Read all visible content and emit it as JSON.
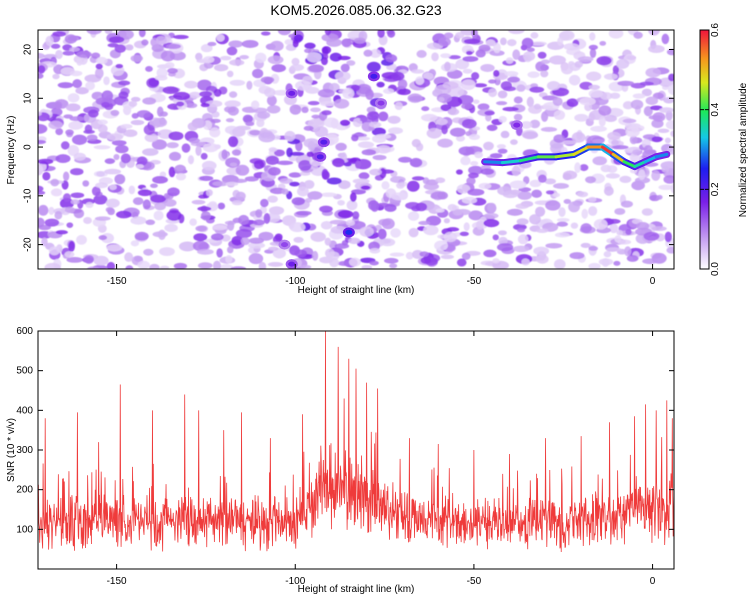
{
  "figure": {
    "title": "KOM5.2026.085.06.32.G23"
  },
  "chart_data": [
    {
      "type": "heatmap",
      "title": "",
      "xlabel": "Height of straight line (km)",
      "ylabel": "Frequency (Hz)",
      "xlim": [
        -172,
        6
      ],
      "ylim": [
        -25,
        24
      ],
      "xticks": [
        -150,
        -100,
        -50,
        0
      ],
      "yticks": [
        -20,
        -10,
        0,
        10,
        20
      ],
      "colorbar": {
        "label": "Normalized spectral amplitude",
        "range": [
          0.0,
          0.6
        ],
        "ticks": [
          0.0,
          0.2,
          0.4,
          0.6
        ]
      },
      "ridge": {
        "name": "signal track",
        "x": [
          -47,
          -42,
          -37,
          -32,
          -27,
          -22,
          -18,
          -14,
          -11,
          -8,
          -5,
          -2,
          1,
          4
        ],
        "y": [
          -3,
          -3.2,
          -2.8,
          -2,
          -2,
          -1.5,
          0,
          0,
          -1.5,
          -3,
          -4,
          -3,
          -2,
          -1.5
        ],
        "amplitude": [
          0.3,
          0.34,
          0.38,
          0.42,
          0.45,
          0.48,
          0.53,
          0.58,
          0.5,
          0.4,
          0.36,
          0.32,
          0.3,
          0.28
        ]
      },
      "features": [
        {
          "x": -92,
          "y": 1,
          "amplitude": 0.2
        },
        {
          "x": -93,
          "y": -2,
          "amplitude": 0.2
        },
        {
          "x": -85,
          "y": -17.5,
          "amplitude": 0.26
        },
        {
          "x": -78,
          "y": 14.5,
          "amplitude": 0.22
        },
        {
          "x": -101,
          "y": 11,
          "amplitude": 0.18
        },
        {
          "x": -76,
          "y": 9,
          "amplitude": 0.15
        },
        {
          "x": -38,
          "y": 4.5,
          "amplitude": 0.16
        },
        {
          "x": -101,
          "y": -24,
          "amplitude": 0.18
        },
        {
          "x": -103,
          "y": -20,
          "amplitude": 0.14
        }
      ]
    },
    {
      "type": "line",
      "title": "",
      "xlabel": "Height of straight line (km)",
      "ylabel": "SNR (10 * v/v)",
      "xlim": [
        -172,
        6
      ],
      "ylim": [
        0,
        600
      ],
      "xticks": [
        -150,
        -100,
        -50,
        0
      ],
      "yticks": [
        100,
        200,
        300,
        400,
        500,
        600
      ],
      "series": [
        {
          "name": "SNR",
          "color": "#ef3b3b",
          "envelope": {
            "x": [
              -172,
              -150,
              -120,
              -100,
              -95,
              -92,
              -88,
              -85,
              -80,
              -75,
              -70,
              -60,
              -50,
              -40,
              -20,
              -10,
              -5,
              0,
              6
            ],
            "mean": [
              120,
              120,
              118,
              122,
              170,
              200,
              205,
              195,
              175,
              155,
              135,
              125,
              115,
              115,
              120,
              130,
              145,
              150,
              155
            ],
            "spread": [
              70,
              70,
              70,
              70,
              90,
              110,
              115,
              110,
              100,
              85,
              75,
              70,
              65,
              65,
              70,
              75,
              85,
              90,
              95
            ]
          },
          "peaks": [
            {
              "x": -91.5,
              "y": 600
            },
            {
              "x": -88,
              "y": 560
            },
            {
              "x": -85,
              "y": 530
            },
            {
              "x": -83,
              "y": 505
            },
            {
              "x": -80,
              "y": 470
            },
            {
              "x": -77,
              "y": 455
            },
            {
              "x": -149,
              "y": 465
            },
            {
              "x": -131,
              "y": 440
            },
            {
              "x": -161,
              "y": 395
            },
            {
              "x": -170,
              "y": 380
            },
            {
              "x": -140,
              "y": 400
            },
            {
              "x": -127,
              "y": 400
            },
            {
              "x": -115,
              "y": 395
            },
            {
              "x": -98,
              "y": 390
            },
            {
              "x": -120,
              "y": 350
            },
            {
              "x": 4,
              "y": 425
            },
            {
              "x": -2,
              "y": 415
            },
            {
              "x": 1,
              "y": 400
            },
            {
              "x": -12,
              "y": 370
            },
            {
              "x": -5,
              "y": 385
            },
            {
              "x": -30,
              "y": 330
            },
            {
              "x": -50,
              "y": 300
            },
            {
              "x": -60,
              "y": 315
            },
            {
              "x": -40,
              "y": 290
            },
            {
              "x": -107,
              "y": 330
            },
            {
              "x": -155,
              "y": 320
            },
            {
              "x": -68,
              "y": 330
            },
            {
              "x": -20,
              "y": 335
            },
            {
              "x": 5.5,
              "y": 380
            }
          ]
        }
      ]
    }
  ]
}
